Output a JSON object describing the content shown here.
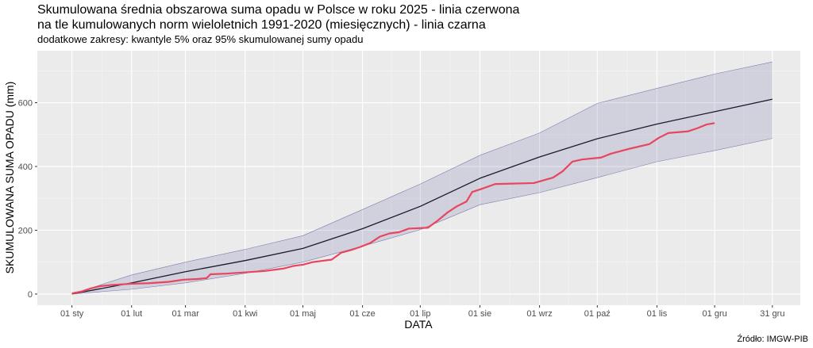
{
  "chart_data": {
    "type": "line",
    "title": "Skumulowana średnia obszarowa suma opadu w Polsce w roku 2025 - linia czerwona",
    "title_line2": "na tle kumulowanych norm wieloletnich 1991-2020 (miesięcznych) - linia czarna",
    "subtitle": "dodatkowe zakresy: kwantyle 5% oraz 95% skumulowanej sumy opadu",
    "x_label": "DATA",
    "y_label": "SKUMULOWANA SUMA OPADU (mm)",
    "caption": "Źródło: IMGW-PIB",
    "xlim": [
      -18,
      378.5
    ],
    "ylim": [
      -35,
      763
    ],
    "xticks": [
      {
        "value": 0,
        "label": "01 sty"
      },
      {
        "value": 31,
        "label": "01 lut"
      },
      {
        "value": 59,
        "label": "01 mar"
      },
      {
        "value": 90,
        "label": "01 kwi"
      },
      {
        "value": 120,
        "label": "01 maj"
      },
      {
        "value": 151,
        "label": "01 cze"
      },
      {
        "value": 181,
        "label": "01 lip"
      },
      {
        "value": 212,
        "label": "01 sie"
      },
      {
        "value": 243,
        "label": "01 wrz"
      },
      {
        "value": 273,
        "label": "01 paź"
      },
      {
        "value": 304,
        "label": "01 lis"
      },
      {
        "value": 334,
        "label": "01 gru"
      },
      {
        "value": 364,
        "label": "31 gru"
      }
    ],
    "yticks": [
      0,
      200,
      400,
      600
    ],
    "grid": true,
    "band": {
      "color": "#3c3c8c",
      "x": [
        0,
        31,
        59,
        90,
        120,
        151,
        181,
        212,
        243,
        273,
        304,
        334,
        364
      ],
      "lower": [
        0,
        15,
        35,
        65,
        100,
        150,
        202,
        280,
        318,
        365,
        415,
        450,
        488
      ],
      "upper": [
        0,
        60,
        100,
        140,
        183,
        265,
        345,
        435,
        505,
        598,
        645,
        690,
        728
      ]
    },
    "series": [
      {
        "color": "#1a1a2e",
        "x": [
          0,
          31,
          59,
          90,
          120,
          151,
          181,
          212,
          243,
          273,
          304,
          334,
          364
        ],
        "values": [
          0,
          35,
          70,
          105,
          143,
          205,
          275,
          363,
          430,
          487,
          533,
          572,
          611
        ]
      },
      {
        "color": "#e8455e",
        "x": [
          0,
          5,
          10,
          15,
          20,
          30,
          40,
          50,
          58,
          65,
          70,
          72,
          80,
          90,
          100,
          110,
          115,
          120,
          125,
          135,
          140,
          145,
          150,
          155,
          160,
          165,
          170,
          175,
          185,
          190,
          195,
          200,
          205,
          208,
          213,
          220,
          240,
          250,
          255,
          260,
          265,
          275,
          280,
          290,
          300,
          305,
          310,
          320,
          325,
          330,
          334
        ],
        "values": [
          2,
          8,
          18,
          25,
          28,
          32,
          34,
          38,
          45,
          47,
          50,
          62,
          64,
          68,
          72,
          80,
          88,
          92,
          100,
          108,
          130,
          138,
          148,
          160,
          180,
          190,
          194,
          205,
          208,
          230,
          255,
          275,
          290,
          320,
          330,
          345,
          348,
          365,
          385,
          415,
          422,
          428,
          440,
          456,
          470,
          490,
          505,
          510,
          520,
          532,
          536
        ]
      }
    ]
  }
}
